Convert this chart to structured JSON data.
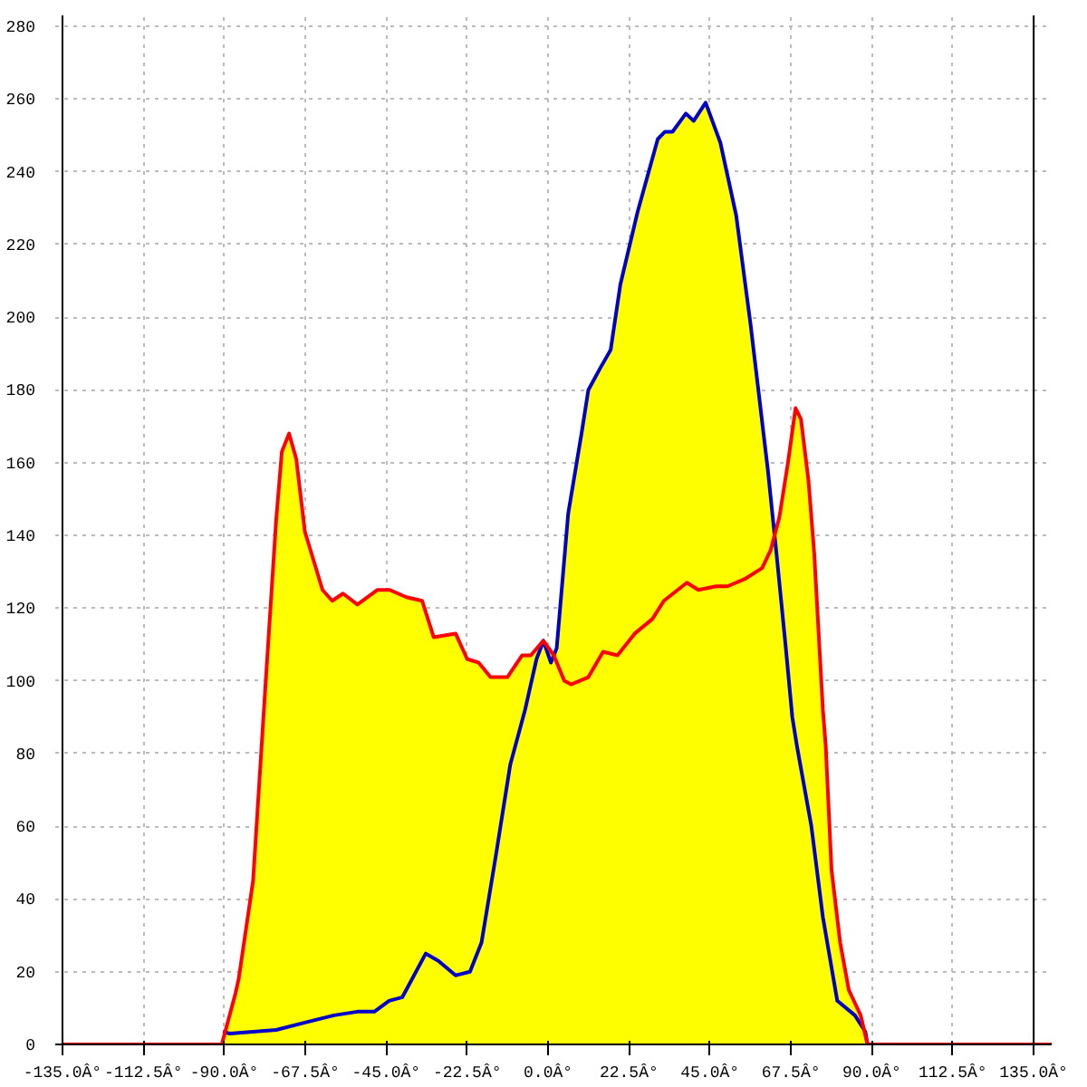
{
  "chart_data": {
    "type": "area",
    "xlim": [
      -137,
      140
    ],
    "ylim": [
      0,
      283
    ],
    "xticks": [
      {
        "value": -135,
        "label": "-135.0Â°"
      },
      {
        "value": -112.5,
        "label": "-112.5Â°"
      },
      {
        "value": -90,
        "label": "-90.0Â°"
      },
      {
        "value": -67.5,
        "label": "-67.5Â°"
      },
      {
        "value": -45,
        "label": "-45.0Â°"
      },
      {
        "value": -22.5,
        "label": "-22.5Â°"
      },
      {
        "value": 0,
        "label": "0.0Â°"
      },
      {
        "value": 22.5,
        "label": "22.5Â°"
      },
      {
        "value": 45,
        "label": "45.0Â°"
      },
      {
        "value": 67.5,
        "label": "67.5Â°"
      },
      {
        "value": 90,
        "label": "90.0Â°"
      },
      {
        "value": 112.5,
        "label": "112.5Â°"
      },
      {
        "value": 135,
        "label": "135.0Â°"
      }
    ],
    "yticks": [
      0,
      20,
      40,
      60,
      80,
      100,
      120,
      140,
      160,
      180,
      200,
      220,
      240,
      260,
      280
    ],
    "grid": true,
    "line_style": "dashed",
    "ref_lines": [
      {
        "axis": "x",
        "value": -135,
        "color": "#000000"
      },
      {
        "axis": "x",
        "value": 135,
        "color": "#000000"
      }
    ],
    "series": [
      {
        "color": "#ffff00",
        "colors": [
          "#ff0000",
          "#ff0000",
          "#ff0000",
          "#ff0000",
          "#ff0000",
          "#ff0000",
          "#ff0000",
          "#ff0000",
          "#ff0000",
          "#ff0000",
          "#ff0000",
          "#ff0000",
          "#ff0000",
          "#ff0000",
          "#ff0000",
          "#ff0000",
          "#ff0000",
          "#ff0000",
          "#ff0000",
          "#ff0000",
          "#ff0000",
          "#ff0000",
          "#ff0000",
          "#ff0000",
          "#ff0000",
          "#ff0000",
          "#ff0000",
          "#ff0000",
          "#ff0000",
          "#ff0000",
          "#ff0000",
          "#ff0000",
          "#ff0000",
          "#ff0000",
          "#ff0000",
          "#ff0000",
          "#ff0000",
          "#ff0000",
          "#ff0000",
          "#ff0000",
          "#ff0000",
          "#ff0000",
          "#ff0000",
          "#ff0000",
          "#ff0000",
          "#ff0000",
          "#ff0000",
          "#ff0000",
          "#ff0000",
          "#ff0000",
          "#ff0000",
          "#ff0000",
          "#ff0000",
          "#ff0000",
          "#ff0000",
          "#ff0000",
          "#ff0000",
          "#ff0000"
        ],
        "x": [
          -135,
          -90.7,
          -86.9,
          -86,
          -82,
          -78.8,
          -75.6,
          -74,
          -72,
          -70,
          -67.6,
          -62.7,
          -60,
          -57,
          -53,
          -47.4,
          -44,
          -39.4,
          -35,
          -31.8,
          -25.7,
          -22.5,
          -19.3,
          -16,
          -11.3,
          -7.2,
          -4.8,
          -1.3,
          1.6,
          4.5,
          6.4,
          11.2,
          15.3,
          19.3,
          24.1,
          29,
          32.2,
          38.6,
          41.8,
          46.7,
          49.9,
          54.7,
          59.5,
          61.9,
          64.3,
          66.7,
          68.8,
          70.3,
          72.4,
          74,
          76.4,
          77.2,
          78.8,
          81.2,
          83.6,
          86.9,
          88.8,
          140
        ],
        "values": [
          0,
          0,
          14,
          18,
          45,
          95,
          144,
          163,
          168,
          161,
          141,
          125,
          122,
          124,
          121,
          125,
          125,
          123,
          122,
          112,
          113,
          106,
          105,
          101,
          101,
          107,
          107,
          111,
          107,
          100,
          99,
          101,
          108,
          107,
          113,
          117,
          122,
          127,
          125,
          126,
          126,
          128,
          131,
          136,
          145,
          160,
          175,
          172,
          155,
          135,
          92,
          82,
          48,
          28,
          15,
          8,
          0,
          0
        ]
      },
      {
        "color": "#fffe00",
        "colors": [
          "#0000cc",
          "#0000cc",
          "#0000cc",
          "#0000cc",
          "#0000cc",
          "#0000cc",
          "#0000cc",
          "#0000cc",
          "#0000cc",
          "#0000cc",
          "#0000cc",
          "#0000cc",
          "#0000cc",
          "#0000cc",
          "#0000cc",
          "#0000cc",
          "#0000cc",
          "#0000cc",
          "#0000cc",
          "#0000cc",
          "#0000cc",
          "#0000cc",
          "#0000cc",
          "#0000cc",
          "#0000cc",
          "#0000cc",
          "#0000cc",
          "#0000cc",
          "#0000cc",
          "#0000cc",
          "#0000cc",
          "#0000cc",
          "#0000cc",
          "#0000cc",
          "#0000cc",
          "#0000cc",
          "#0000cc",
          "#0000cc",
          "#0000cc",
          "#0000cc",
          "#0000cc",
          "#0000cc",
          "#0000cc",
          "#0000cc",
          "#0000cc",
          "#0000cc",
          "#0000cc",
          "#0000cc"
        ],
        "x": [
          -90.4,
          -88.5,
          -75.6,
          -67.6,
          -59.5,
          -53,
          -48.3,
          -44.2,
          -40.5,
          -34,
          -30.5,
          -25.7,
          -21.7,
          -18.5,
          -14.5,
          -10.5,
          -6.4,
          -3.2,
          -1.3,
          0.8,
          2.4,
          5.6,
          9.3,
          11.2,
          14.5,
          17.4,
          20.1,
          24.9,
          30.5,
          32.5,
          34.6,
          38.3,
          40.5,
          43.8,
          47.9,
          52.3,
          56.3,
          61.1,
          63.5,
          66,
          67.9,
          69.2,
          73.2,
          76.4,
          80.4,
          85.3,
          88.2,
          88.8
        ],
        "values": [
          3.5,
          3,
          4,
          6,
          8,
          9,
          9,
          12,
          13,
          25,
          23,
          19,
          20,
          28,
          52,
          77,
          92,
          106,
          111,
          105,
          109,
          146,
          168,
          180,
          186,
          191,
          209,
          229,
          249,
          251,
          251,
          256,
          254,
          259,
          248,
          228,
          198,
          158,
          135,
          110,
          90,
          82,
          60,
          35,
          12,
          8,
          3.5,
          0
        ]
      }
    ]
  }
}
